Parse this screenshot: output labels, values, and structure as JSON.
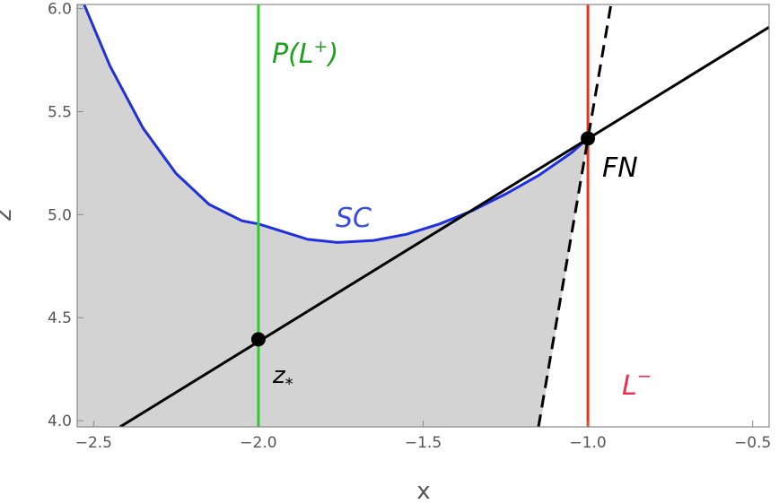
{
  "chart_data": {
    "type": "line",
    "xlabel": "x",
    "ylabel": "z",
    "xlim": [
      -2.55,
      -0.45
    ],
    "ylim": [
      3.97,
      6.02
    ],
    "x_ticks": [
      "-2.5",
      "-2.0",
      "-1.5",
      "-1.0",
      "-0.5"
    ],
    "y_ticks": [
      "4.0",
      "4.5",
      "5.0",
      "5.5",
      "6.0"
    ],
    "grid": false,
    "colors": {
      "sc_curve": "#1f2fe0",
      "p_l_plus_line": "#2ecc2e",
      "l_minus_line": "#e8321e",
      "tangent_line": "#000000",
      "dashed_line": "#000000",
      "shaded_region": "#d3d3d3",
      "label_p": "#1f9e1f",
      "label_sc": "#3a4fe0",
      "label_l_minus": "#e8324a"
    },
    "series": [
      {
        "name": "SC",
        "x": [
          -2.55,
          -2.45,
          -2.35,
          -2.25,
          -2.15,
          -2.05,
          -2.0,
          -1.95,
          -1.85,
          -1.76,
          -1.65,
          -1.55,
          -1.45,
          -1.35,
          -1.25,
          -1.15,
          -1.05,
          -1.0
        ],
        "y": [
          6.1,
          5.72,
          5.42,
          5.2,
          5.05,
          4.97,
          4.955,
          4.93,
          4.88,
          4.865,
          4.875,
          4.905,
          4.955,
          5.02,
          5.1,
          5.19,
          5.3,
          5.37
        ]
      },
      {
        "name": "tangent",
        "x": [
          -2.42,
          -0.45
        ],
        "y": [
          3.97,
          5.91
        ]
      },
      {
        "name": "dashed",
        "x": [
          -1.15,
          -0.93
        ],
        "y": [
          3.97,
          6.02
        ]
      }
    ],
    "vertical_lines": [
      {
        "name": "P(L+)",
        "x": -2.0
      },
      {
        "name": "L-",
        "x": -1.0
      }
    ],
    "points": [
      {
        "name": "z*",
        "x": -2.0,
        "y": 4.395
      },
      {
        "name": "FN",
        "x": -1.0,
        "y": 5.37
      }
    ],
    "annotations": {
      "p_label": "P(L",
      "p_label_sup": "+",
      "p_label_close": ")",
      "sc_label": "SC",
      "fn_label": "FN",
      "z_label": "z",
      "z_label_sub": "*",
      "l_label": "L",
      "l_label_sup": "−"
    }
  }
}
